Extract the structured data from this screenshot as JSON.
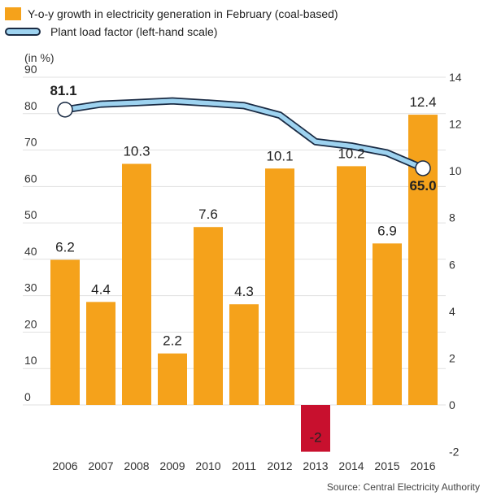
{
  "legend": {
    "bar_label": "Y-o-y growth in electricity generation in February (coal-based)",
    "line_label": "Plant load factor  (left-hand scale)"
  },
  "unit_label": "(in %)",
  "source": "Source: Central Electricity Authority",
  "colors": {
    "bar": "#f5a21b",
    "bar_negative": "#c8102e",
    "line_fill": "#9ed3f0",
    "line_stroke": "#1a2b44",
    "grid": "#e1e1e1",
    "background": "#ffffff"
  },
  "chart_data": {
    "type": "bar",
    "categories": [
      "2006",
      "2007",
      "2008",
      "2009",
      "2010",
      "2011",
      "2012",
      "2013",
      "2014",
      "2015",
      "2016"
    ],
    "series": [
      {
        "name": "Y-o-y growth in electricity generation in February (coal-based)",
        "axis": "right",
        "values": [
          6.2,
          4.4,
          10.3,
          2.2,
          7.6,
          4.3,
          10.1,
          -2,
          10.2,
          6.9,
          12.4
        ],
        "value_labels": [
          "6.2",
          "4.4",
          "10.3",
          "2.2",
          "7.6",
          "4.3",
          "10.1",
          "-2",
          "10.2",
          "6.9",
          "12.4"
        ]
      },
      {
        "name": "Plant load factor  (left-hand scale)",
        "type": "line",
        "axis": "left",
        "values": [
          81.1,
          82.6,
          83.0,
          83.5,
          82.9,
          82.2,
          79.6,
          72.3,
          71.1,
          69.2,
          65.0
        ],
        "value_labels": [
          "81.1",
          "",
          "",
          "",
          "",
          "",
          "",
          "",
          "",
          "",
          "65.0"
        ]
      }
    ],
    "left_axis": {
      "ylim": [
        0,
        90
      ],
      "ticks": [
        "0",
        "10",
        "20",
        "30",
        "40",
        "50",
        "60",
        "70",
        "80",
        "90"
      ]
    },
    "right_axis": {
      "ylim": [
        -2,
        14
      ],
      "ticks": [
        "-2",
        "0",
        "2",
        "4",
        "6",
        "8",
        "10",
        "12",
        "14"
      ]
    },
    "grid": true,
    "legend_position": "top-left"
  }
}
